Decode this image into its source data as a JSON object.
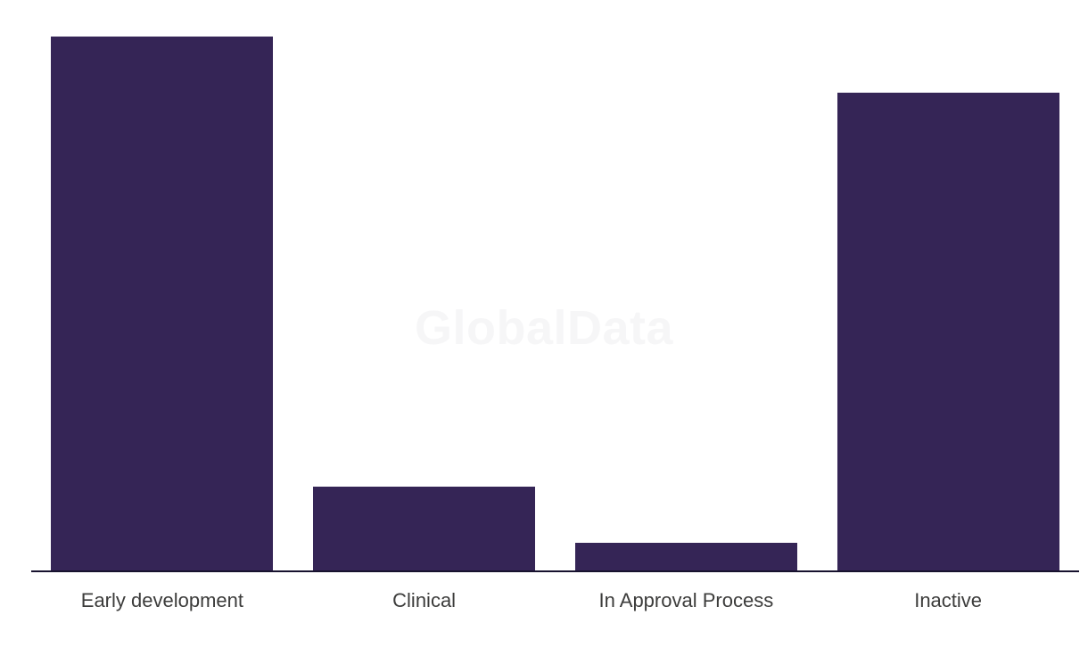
{
  "chart_data": {
    "type": "bar",
    "categories": [
      "Early development",
      "Clinical",
      "In Approval Process",
      "Inactive"
    ],
    "values": [
      100,
      15.8,
      5.3,
      89.5
    ],
    "title": "",
    "xlabel": "",
    "ylabel": "",
    "ylim": [
      0,
      100
    ],
    "grid": false,
    "legend": false,
    "bar_color": "#352556",
    "axis_line_color": "#17122e",
    "label_color": "#3c3c3b",
    "watermark": "GlobalData"
  }
}
